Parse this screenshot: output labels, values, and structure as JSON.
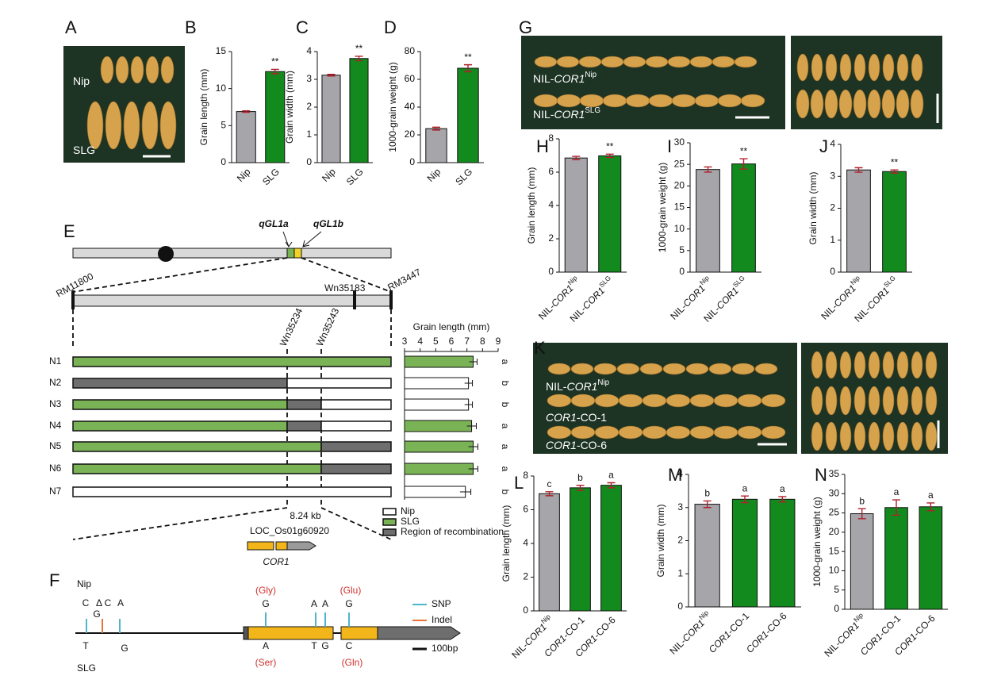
{
  "panel_labels": [
    "A",
    "B",
    "C",
    "D",
    "E",
    "F",
    "G",
    "H",
    "I",
    "J",
    "K",
    "L",
    "M",
    "N"
  ],
  "chart_data": [
    {
      "type": "bar",
      "y_label": "Grain length (mm)",
      "categories": [
        [
          {
            "text": "Nip"
          }
        ],
        [
          {
            "text": "SLG"
          }
        ]
      ],
      "values": [
        6.9,
        12.3
      ],
      "errors": [
        0.1,
        0.3
      ],
      "colors": [
        "#a6a6aa",
        "#138a1e"
      ],
      "ylim": [
        0,
        15
      ],
      "yticks": [
        0,
        5,
        10,
        15
      ],
      "significance": [
        null,
        "**"
      ]
    },
    {
      "type": "bar",
      "y_label": "Grain width (mm)",
      "categories": [
        [
          {
            "text": "Nip"
          }
        ],
        [
          {
            "text": "SLG"
          }
        ]
      ],
      "values": [
        3.15,
        3.75
      ],
      "errors": [
        0.03,
        0.08
      ],
      "colors": [
        "#a6a6aa",
        "#138a1e"
      ],
      "ylim": [
        0,
        4
      ],
      "yticks": [
        0,
        1,
        2,
        3,
        4
      ],
      "significance": [
        null,
        "**"
      ]
    },
    {
      "type": "bar",
      "y_label": "1000-grain weight (g)",
      "categories": [
        [
          {
            "text": "Nip"
          }
        ],
        [
          {
            "text": "SLG"
          }
        ]
      ],
      "values": [
        24.5,
        68
      ],
      "errors": [
        1,
        2.5
      ],
      "colors": [
        "#a6a6aa",
        "#138a1e"
      ],
      "ylim": [
        0,
        80
      ],
      "yticks": [
        0,
        20,
        40,
        60,
        80
      ],
      "significance": [
        null,
        "**"
      ]
    },
    {
      "type": "bar",
      "y_label": "Grain length (mm)",
      "categories": [
        [
          {
            "text": "NIL-"
          },
          {
            "text": "COR1",
            "style": "italic"
          },
          {
            "text": "Nip",
            "style": "sup"
          }
        ],
        [
          {
            "text": "NIL-"
          },
          {
            "text": "COR1",
            "style": "italic"
          },
          {
            "text": "SLG",
            "style": "sup"
          }
        ]
      ],
      "values": [
        6.85,
        6.98
      ],
      "errors": [
        0.1,
        0.1
      ],
      "colors": [
        "#a6a6aa",
        "#138a1e"
      ],
      "ylim": [
        0,
        8
      ],
      "yticks": [
        0,
        2,
        4,
        6,
        8
      ],
      "significance": [
        null,
        "**"
      ]
    },
    {
      "type": "bar",
      "y_label": "1000-grain weight (g)",
      "categories": [
        [
          {
            "text": "NIL-"
          },
          {
            "text": "COR1",
            "style": "italic"
          },
          {
            "text": "Nip",
            "style": "sup"
          }
        ],
        [
          {
            "text": "NIL-"
          },
          {
            "text": "COR1",
            "style": "italic"
          },
          {
            "text": "SLG",
            "style": "sup"
          }
        ]
      ],
      "values": [
        23.8,
        25.1
      ],
      "errors": [
        0.6,
        1.2
      ],
      "colors": [
        "#a6a6aa",
        "#138a1e"
      ],
      "ylim": [
        0,
        30
      ],
      "yticks": [
        0,
        5,
        10,
        15,
        20,
        25,
        30
      ],
      "significance": [
        null,
        "**"
      ]
    },
    {
      "type": "bar",
      "y_label": "Grain width (mm)",
      "categories": [
        [
          {
            "text": "NIL-"
          },
          {
            "text": "COR1",
            "style": "italic"
          },
          {
            "text": "Nip",
            "style": "sup"
          }
        ],
        [
          {
            "text": "NIL-"
          },
          {
            "text": "COR1",
            "style": "italic"
          },
          {
            "text": "SLG",
            "style": "sup"
          }
        ]
      ],
      "values": [
        3.2,
        3.15
      ],
      "errors": [
        0.07,
        0.05
      ],
      "colors": [
        "#a6a6aa",
        "#138a1e"
      ],
      "ylim": [
        0,
        4
      ],
      "yticks": [
        0,
        1,
        2,
        3,
        4
      ],
      "significance": [
        null,
        "**"
      ]
    },
    {
      "type": "bar",
      "y_label": "Grain length (mm)",
      "categories": [
        [
          {
            "text": "NIL-"
          },
          {
            "text": "COR1",
            "style": "italic"
          },
          {
            "text": "Nip",
            "style": "sup"
          }
        ],
        [
          {
            "text": "COR1",
            "style": "italic"
          },
          {
            "text": "-CO-1"
          }
        ],
        [
          {
            "text": "COR1",
            "style": "italic"
          },
          {
            "text": "-CO-6"
          }
        ]
      ],
      "values": [
        6.95,
        7.3,
        7.45
      ],
      "errors": [
        0.12,
        0.15,
        0.15
      ],
      "colors": [
        "#a6a6aa",
        "#138a1e",
        "#138a1e"
      ],
      "ylim": [
        0,
        8
      ],
      "yticks": [
        0,
        2,
        4,
        6,
        8
      ],
      "significance": [
        "c",
        "b",
        "a"
      ]
    },
    {
      "type": "bar",
      "y_label": "Grain width (mm)",
      "categories": [
        [
          {
            "text": "NIL-"
          },
          {
            "text": "COR1",
            "style": "italic"
          },
          {
            "text": "Nip",
            "style": "sup"
          }
        ],
        [
          {
            "text": "COR1",
            "style": "italic"
          },
          {
            "text": "-CO-1"
          }
        ],
        [
          {
            "text": "COR1",
            "style": "italic"
          },
          {
            "text": "-CO-6"
          }
        ]
      ],
      "values": [
        3.1,
        3.25,
        3.25
      ],
      "errors": [
        0.1,
        0.1,
        0.08
      ],
      "colors": [
        "#a6a6aa",
        "#138a1e",
        "#138a1e"
      ],
      "ylim": [
        0,
        4
      ],
      "yticks": [
        0,
        1,
        2,
        3,
        4
      ],
      "significance": [
        "b",
        "a",
        "a"
      ]
    },
    {
      "type": "bar",
      "y_label": "1000-grain weight (g)",
      "categories": [
        [
          {
            "text": "NIL-"
          },
          {
            "text": "COR1",
            "style": "italic"
          },
          {
            "text": "Nip",
            "style": "sup"
          }
        ],
        [
          {
            "text": "COR1",
            "style": "italic"
          },
          {
            "text": "-CO-1"
          }
        ],
        [
          {
            "text": "COR1",
            "style": "italic"
          },
          {
            "text": "-CO-6"
          }
        ]
      ],
      "values": [
        24.8,
        26.4,
        26.6
      ],
      "errors": [
        1.3,
        2.0,
        1.0
      ],
      "colors": [
        "#a6a6aa",
        "#138a1e",
        "#138a1e"
      ],
      "ylim": [
        0,
        35
      ],
      "yticks": [
        0,
        5,
        10,
        15,
        20,
        25,
        30,
        35
      ],
      "significance": [
        "b",
        "a",
        "a"
      ]
    },
    {
      "type": "hbar",
      "x_label": "Grain length (mm)",
      "categories": [
        [
          {
            "text": "N1"
          }
        ],
        [
          {
            "text": "N2"
          }
        ],
        [
          {
            "text": "N3"
          }
        ],
        [
          {
            "text": "N4"
          }
        ],
        [
          {
            "text": "N5"
          }
        ],
        [
          {
            "text": "N6"
          }
        ],
        [
          {
            "text": "N7"
          }
        ]
      ],
      "values": [
        7.4,
        7.1,
        7.1,
        7.3,
        7.4,
        7.4,
        6.9
      ],
      "errors": [
        0.25,
        0.25,
        0.25,
        0.3,
        0.3,
        0.3,
        0.35
      ],
      "colors": [
        "#7ab356",
        "#ffffff",
        "#ffffff",
        "#7ab356",
        "#7ab356",
        "#7ab356",
        "#ffffff"
      ],
      "xlim": [
        3,
        9
      ],
      "xticks": [
        3,
        4,
        5,
        6,
        7,
        8,
        9
      ],
      "significance": [
        "a",
        "b",
        "b",
        "a",
        "a",
        "a",
        "b"
      ]
    }
  ],
  "photo_labels": {
    "A": [
      [
        {
          "text": "Nip"
        }
      ],
      [
        {
          "text": "SLG"
        }
      ]
    ],
    "G": [
      [
        {
          "text": "NIL-"
        },
        {
          "text": "COR1",
          "style": "italic"
        },
        {
          "text": "Nip",
          "style": "sup"
        }
      ],
      [
        {
          "text": "NIL-"
        },
        {
          "text": "COR1",
          "style": "italic"
        },
        {
          "text": "SLG",
          "style": "sup"
        }
      ]
    ],
    "K": [
      [
        {
          "text": "NIL-"
        },
        {
          "text": "COR1",
          "style": "italic"
        },
        {
          "text": "Nip",
          "style": "sup"
        }
      ],
      [
        {
          "text": "COR1",
          "style": "italic"
        },
        {
          "text": "-CO-1"
        }
      ],
      [
        {
          "text": "COR1",
          "style": "italic"
        },
        {
          "text": "-CO-6"
        }
      ]
    ]
  },
  "map": {
    "qtl": [
      "qGL1a",
      "qGL1b"
    ],
    "markers": [
      "RM11800",
      "RM3447",
      "Wn35183",
      "Wn35234",
      "Wn35243"
    ],
    "interval": "8.24 kb",
    "gene_id": "LOC_Os01g60920",
    "gene_name": "COR1",
    "legend": [
      {
        "label": "Nip",
        "color": "#ffffff"
      },
      {
        "label": "SLG",
        "color": "#7ab356"
      },
      {
        "label": "Region of recombination",
        "color": "#6e6e6e"
      }
    ]
  },
  "gene_structure": {
    "top_label": "Nip",
    "bottom_label": "SLG",
    "top_bases": [
      "C",
      "Δ",
      "C",
      "G",
      "A",
      "G",
      "A",
      "A",
      "G"
    ],
    "bottom_bases": [
      "T",
      "G",
      "A",
      "T",
      "G",
      "C"
    ],
    "top_aa": [
      "(Gly)",
      "(Glu)"
    ],
    "bottom_aa": [
      "(Ser)",
      "(Gln)"
    ],
    "legend": [
      "SNP",
      "Indel"
    ],
    "scale": "100bp"
  }
}
